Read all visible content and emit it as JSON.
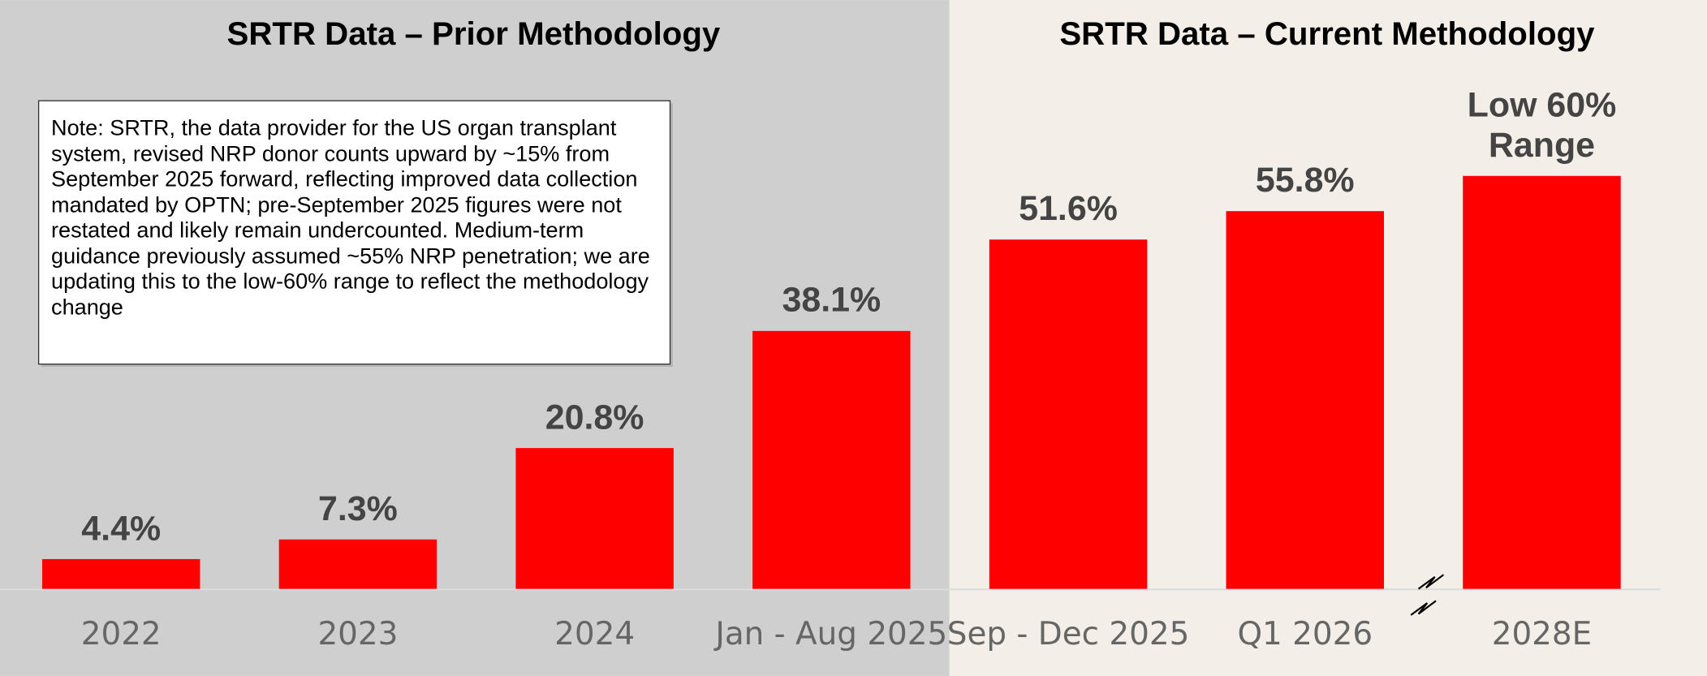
{
  "sections": [
    "SRTR Data – Prior Methodology",
    "SRTR Data – Current Methodology"
  ],
  "note": "Note: SRTR, the data provider for the US organ transplant system, revised NRP donor counts upward by ~15% from September 2025 forward, reflecting improved data collection mandated by OPTN; pre-September 2025 figures were not restated and likely remain undercounted. Medium-term guidance previously assumed ~55% NRP penetration; we are updating this to the low-60% range to reflect the methodology change",
  "chart_data": {
    "type": "bar",
    "categories": [
      "2022",
      "2023",
      "2024",
      "Jan - Aug 2025",
      "Sep - Dec 2025",
      "Q1 2026",
      "2028E"
    ],
    "values": [
      4.4,
      7.3,
      20.8,
      38.1,
      51.6,
      55.8,
      61
    ],
    "value_labels": [
      "4.4%",
      "7.3%",
      "20.8%",
      "38.1%",
      "51.6%",
      "55.8%",
      "Low 60% Range"
    ],
    "color": "#ff0000"
  }
}
